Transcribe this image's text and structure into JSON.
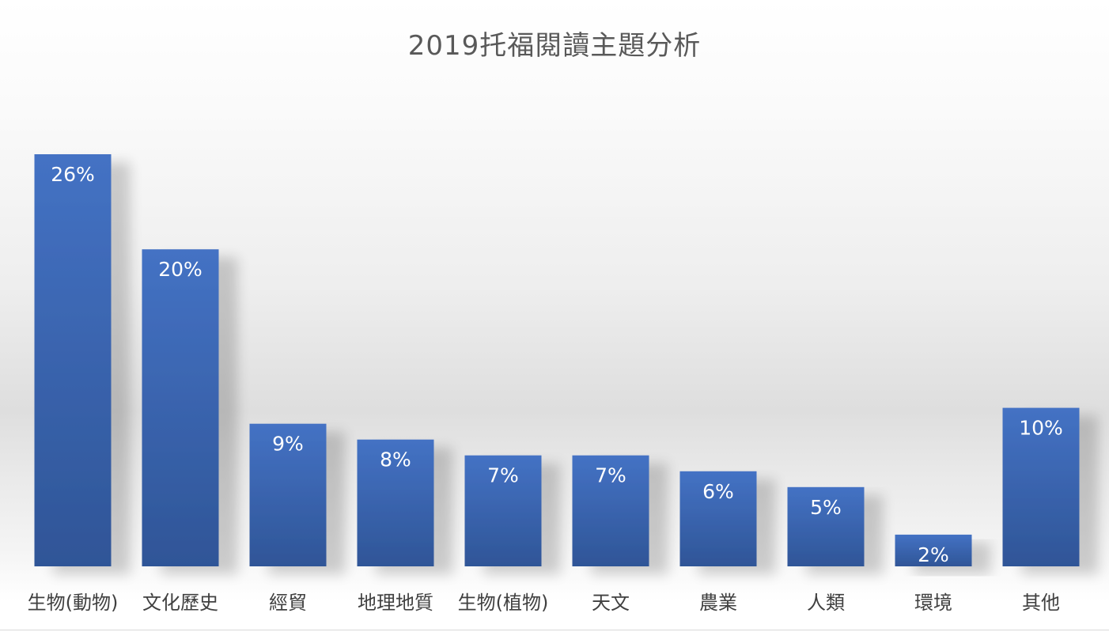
{
  "chart_data": {
    "type": "bar",
    "title": "2019托福閱讀主題分析",
    "categories": [
      "生物(動物)",
      "文化歷史",
      "經貿",
      "地理地質",
      "生物(植物)",
      "天文",
      "農業",
      "人類",
      "環境",
      "其他"
    ],
    "values": [
      26,
      20,
      9,
      8,
      7,
      7,
      6,
      5,
      2,
      10
    ],
    "data_labels": [
      "26%",
      "20%",
      "9%",
      "8%",
      "7%",
      "7%",
      "6%",
      "5%",
      "2%",
      "10%"
    ],
    "value_unit": "%",
    "ylim": [
      0,
      26
    ],
    "xlabel": "",
    "ylabel": "",
    "grid": false,
    "legend": "none",
    "colors": {
      "bar_top": "#4472C4",
      "bar_bottom": "#2F5597",
      "label": "#FFFFFF",
      "category_text": "#404040",
      "title_text": "#595959"
    }
  }
}
